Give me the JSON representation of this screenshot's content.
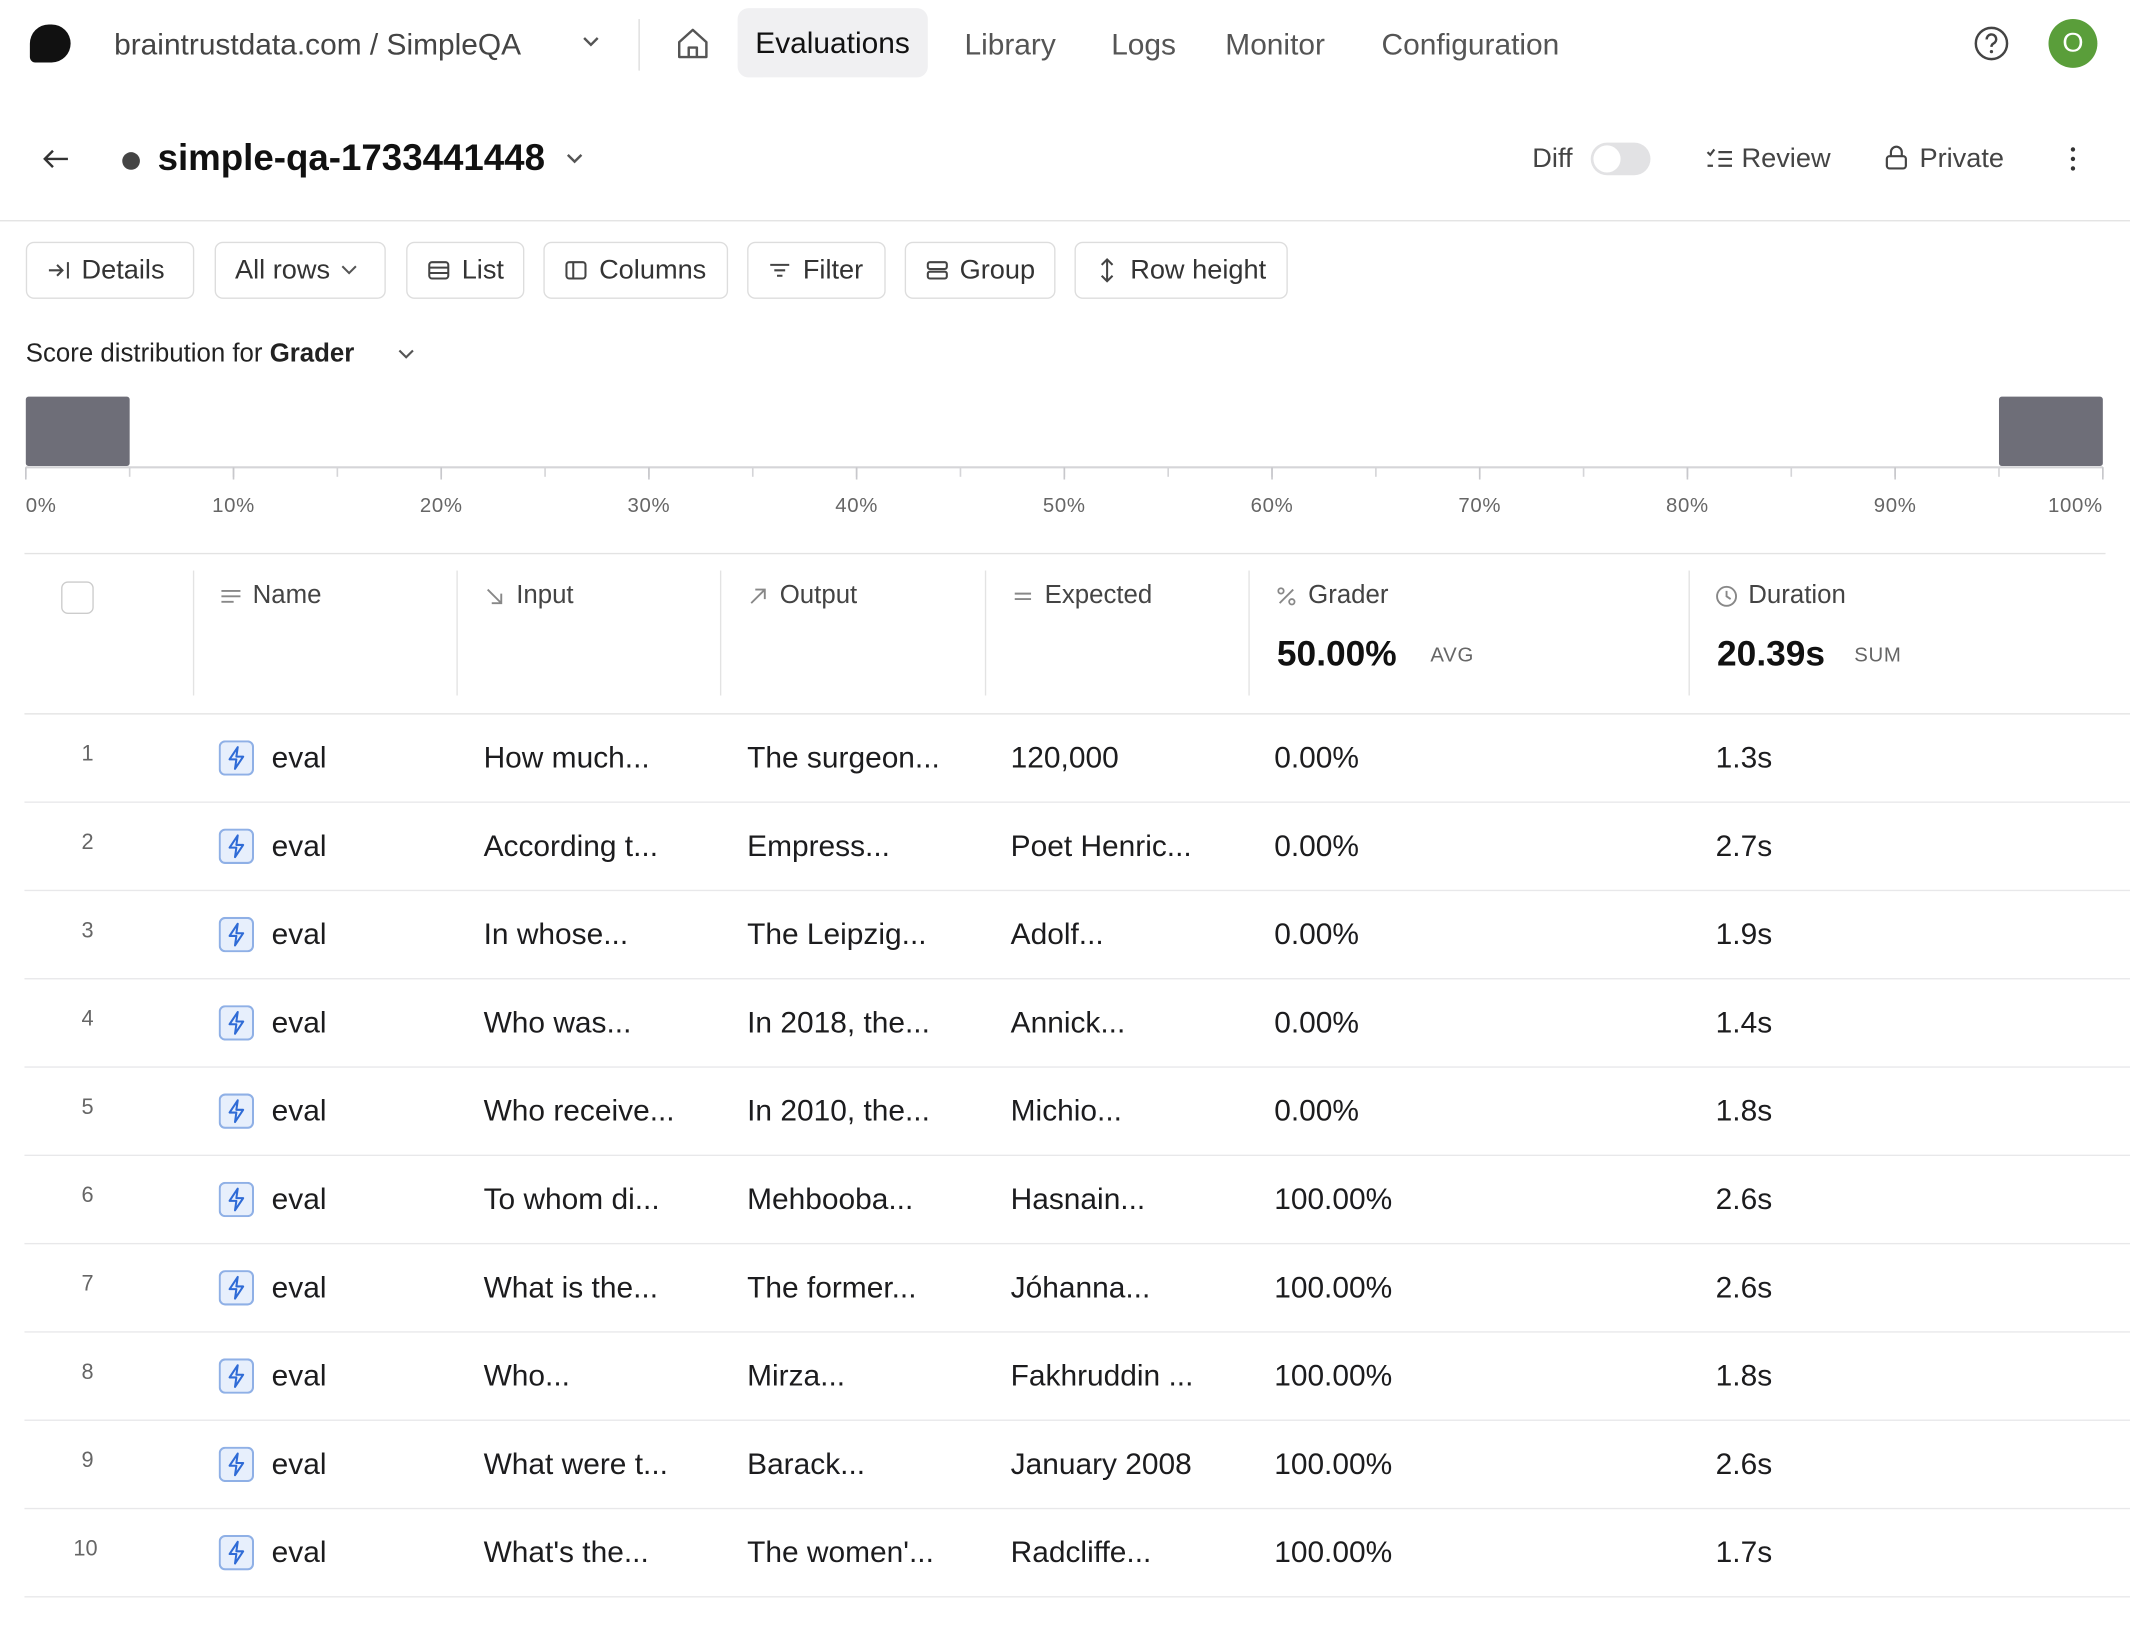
{
  "nav": {
    "org_project": "braintrustdata.com / SimpleQA",
    "tabs": [
      "Evaluations",
      "Library",
      "Logs",
      "Monitor",
      "Configuration"
    ],
    "avatar": "O"
  },
  "header": {
    "experiment": "simple-qa-1733441448",
    "diff": "Diff",
    "review": "Review",
    "private": "Private"
  },
  "toolbar": [
    "Details",
    "All rows",
    "List",
    "Columns",
    "Filter",
    "Group",
    "Row height"
  ],
  "score_distribution": {
    "label": "Score distribution for",
    "score_name": "Grader"
  },
  "chart_data": {
    "type": "histogram",
    "bins": [
      0,
      5,
      10,
      15,
      20,
      25,
      30,
      35,
      40,
      45,
      50,
      55,
      60,
      65,
      70,
      75,
      80,
      85,
      90,
      95,
      100
    ],
    "values": [
      5,
      0,
      0,
      0,
      0,
      0,
      0,
      0,
      0,
      0,
      0,
      0,
      0,
      0,
      0,
      0,
      0,
      0,
      0,
      5
    ],
    "color": "#6e6e78",
    "xlim": [
      0,
      100
    ],
    "xticks": [
      {
        "value": 0,
        "label": "0%"
      },
      {
        "value": 10,
        "label": "10%"
      },
      {
        "value": 20,
        "label": "20%"
      },
      {
        "value": 30,
        "label": "30%"
      },
      {
        "value": 40,
        "label": "40%"
      },
      {
        "value": 50,
        "label": "50%"
      },
      {
        "value": 60,
        "label": "60%"
      },
      {
        "value": 70,
        "label": "70%"
      },
      {
        "value": 80,
        "label": "80%"
      },
      {
        "value": 90,
        "label": "90%"
      },
      {
        "value": 100,
        "label": "100%"
      }
    ]
  },
  "table": {
    "columns": [
      "Name",
      "Input",
      "Output",
      "Expected",
      "Grader",
      "Duration"
    ],
    "summary": {
      "grader": "50.00%",
      "grader_agg": "AVG",
      "duration": "20.39s",
      "duration_agg": "SUM"
    },
    "rows": [
      [
        1,
        "eval",
        "How much...",
        "The surgeon...",
        "120,000",
        "0.00%",
        "1.3s"
      ],
      [
        2,
        "eval",
        "According t...",
        "Empress...",
        "Poet Henric...",
        "0.00%",
        "2.7s"
      ],
      [
        3,
        "eval",
        "In whose...",
        "The Leipzig...",
        "Adolf...",
        "0.00%",
        "1.9s"
      ],
      [
        4,
        "eval",
        "Who was...",
        "In 2018, the...",
        "Annick...",
        "0.00%",
        "1.4s"
      ],
      [
        5,
        "eval",
        "Who receive...",
        "In 2010, the...",
        "Michio...",
        "0.00%",
        "1.8s"
      ],
      [
        6,
        "eval",
        "To whom di...",
        "Mehbooba...",
        "Hasnain...",
        "100.00%",
        "2.6s"
      ],
      [
        7,
        "eval",
        "What is the...",
        "The former...",
        "Jóhanna...",
        "100.00%",
        "2.6s"
      ],
      [
        8,
        "eval",
        "Who...",
        "Mirza...",
        "Fakhruddin ...",
        "100.00%",
        "1.8s"
      ],
      [
        9,
        "eval",
        "What were t...",
        "Barack...",
        "January 2008",
        "100.00%",
        "2.6s"
      ],
      [
        10,
        "eval",
        "What's the...",
        "The women'...",
        "Radcliffe...",
        "100.00%",
        "1.7s"
      ]
    ]
  }
}
